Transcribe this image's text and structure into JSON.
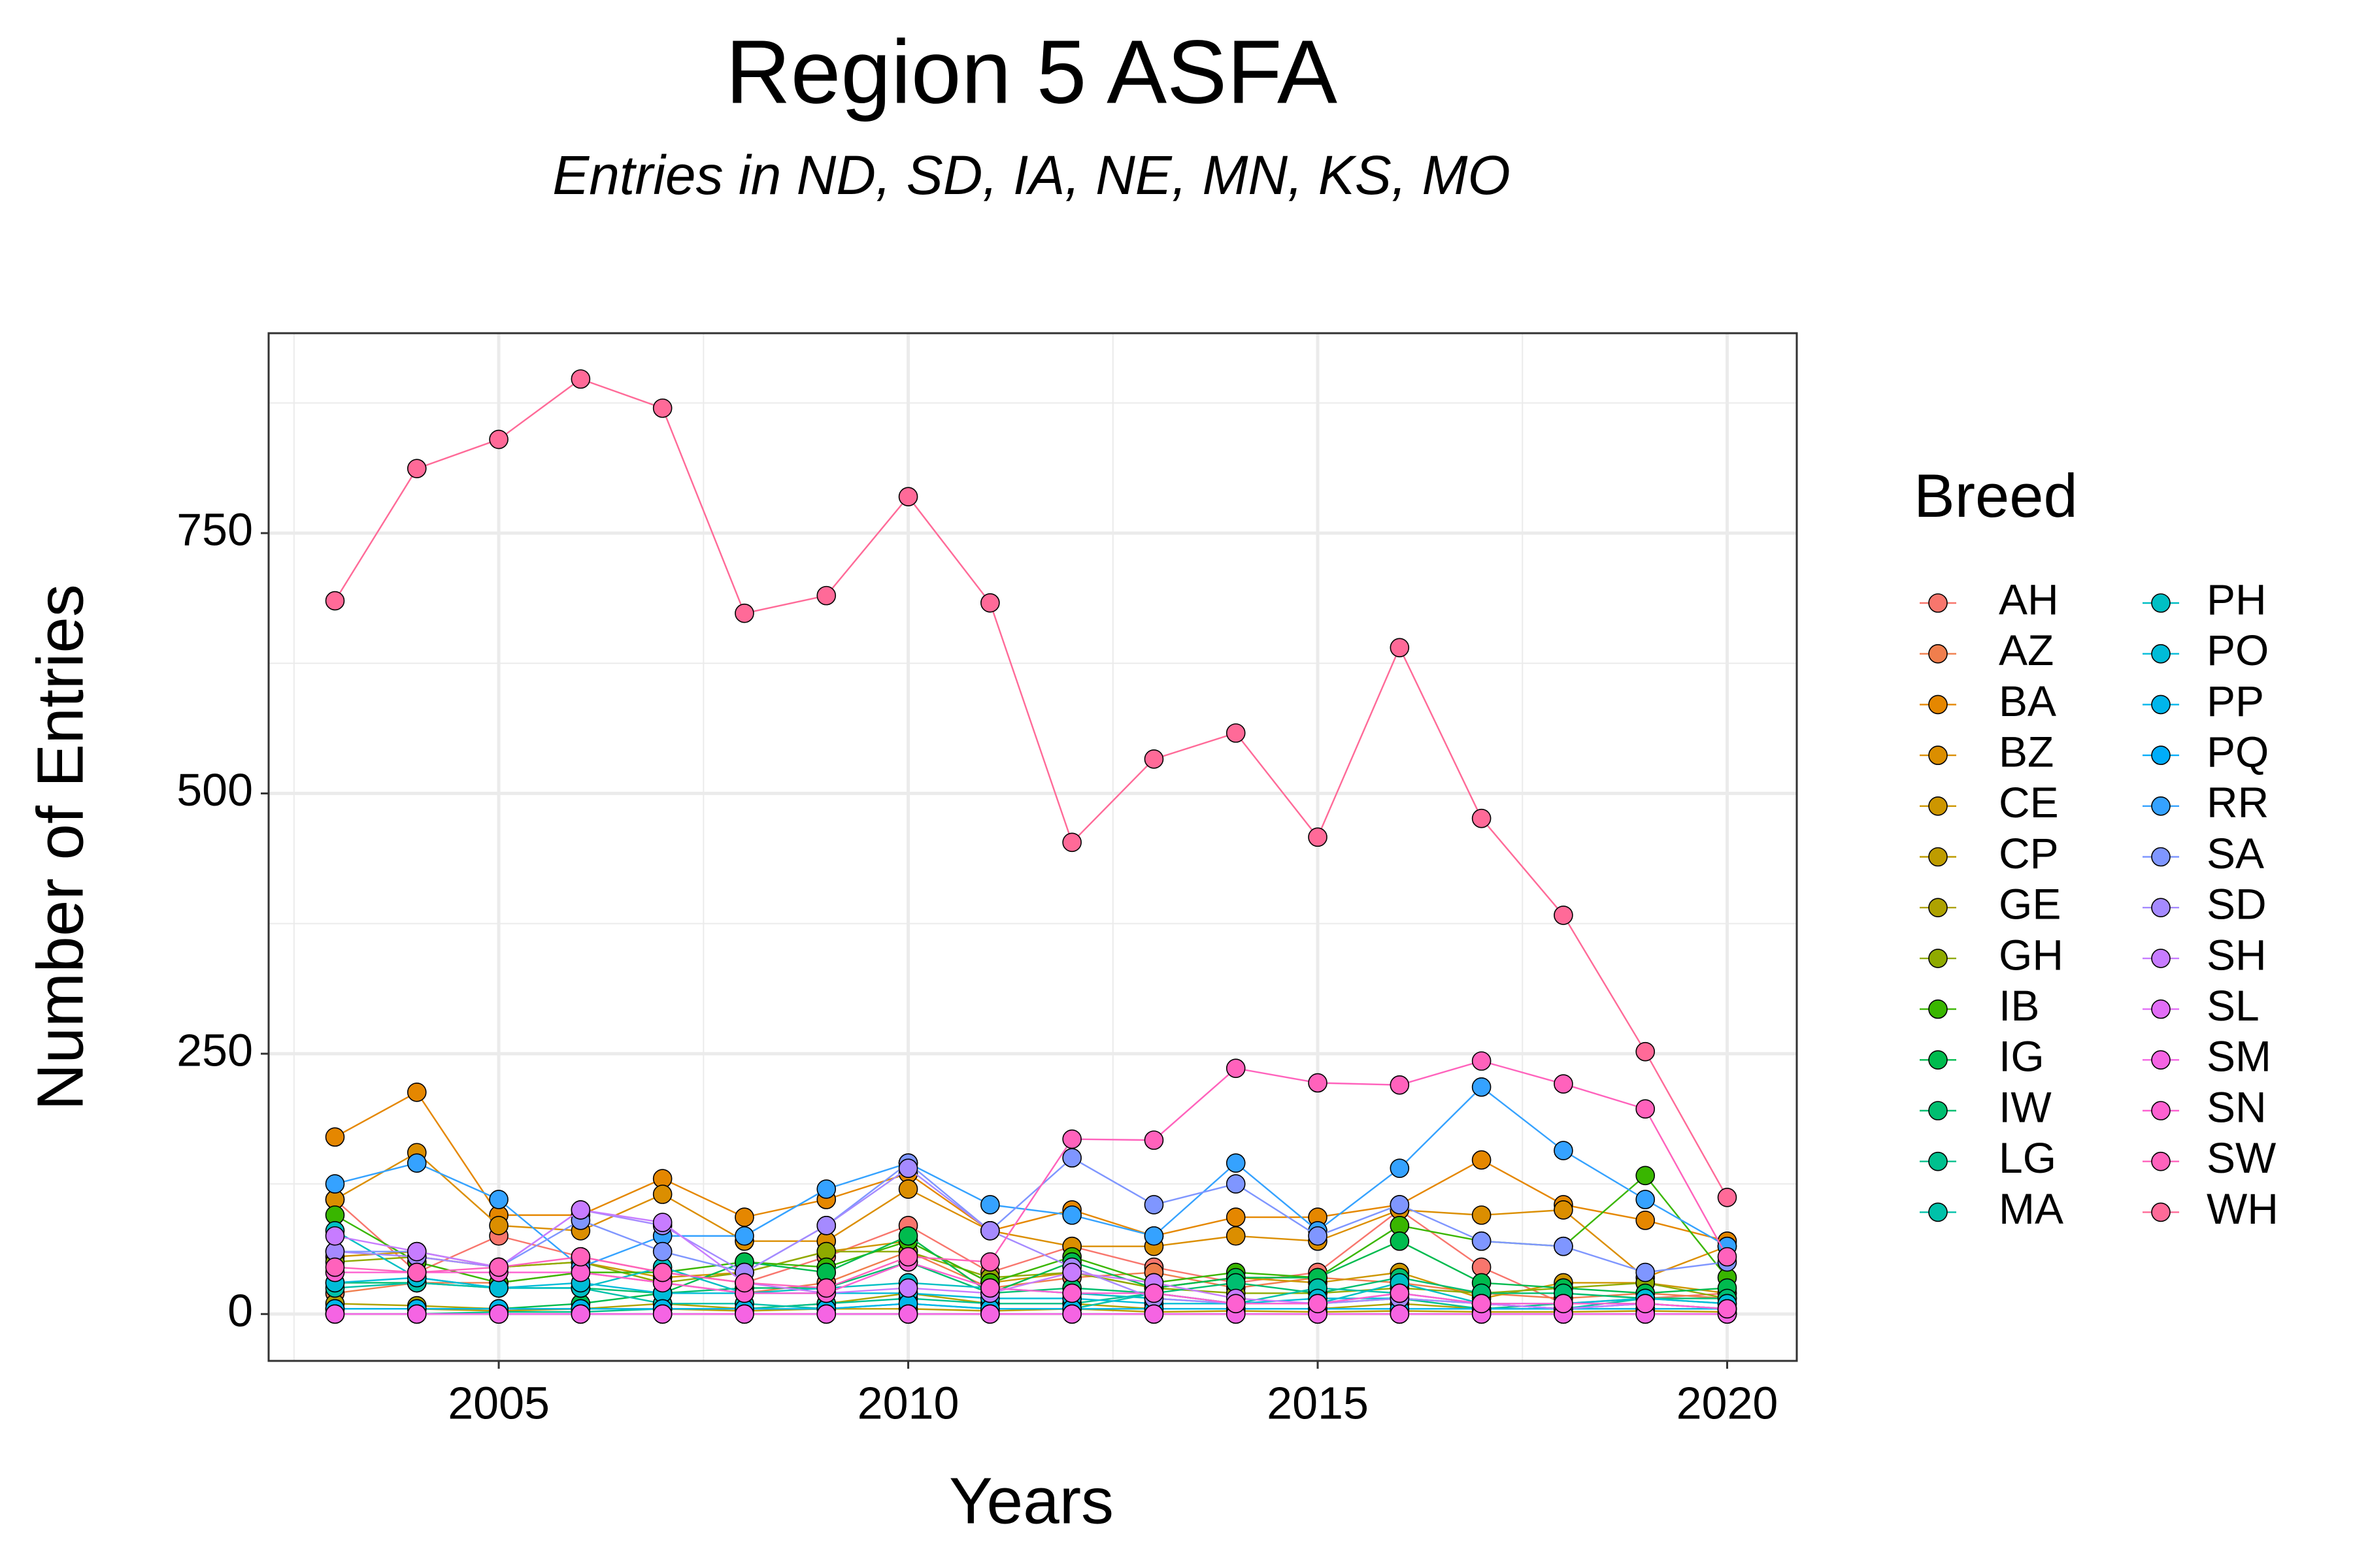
{
  "chart_data": {
    "type": "line",
    "title": "Region 5 ASFA",
    "subtitle": "Entries in ND, SD, IA, NE, MN, KS, MO",
    "x_label": "Years",
    "y_label": "Number of Entries",
    "legend_title": "Breed",
    "x": [
      2003,
      2004,
      2005,
      2006,
      2007,
      2008,
      2009,
      2010,
      2011,
      2012,
      2013,
      2014,
      2015,
      2016,
      2017,
      2018,
      2019,
      2020
    ],
    "xlim": [
      2002.19,
      2020.85
    ],
    "xticks": [
      2005,
      2010,
      2015,
      2020
    ],
    "ylim": [
      -45,
      942
    ],
    "yticks": [
      0,
      250,
      500,
      750
    ],
    "grid": true,
    "legend": "right",
    "series": [
      {
        "name": "AH",
        "color": "#F8766D",
        "values": [
          110,
          40,
          75,
          55,
          40,
          30,
          55,
          85,
          40,
          65,
          45,
          30,
          40,
          100,
          45,
          10,
          15,
          20
        ]
      },
      {
        "name": "AZ",
        "color": "#F07E4D",
        "values": [
          20,
          30,
          30,
          40,
          30,
          20,
          30,
          60,
          25,
          35,
          40,
          25,
          35,
          30,
          20,
          15,
          20,
          15
        ]
      },
      {
        "name": "BA",
        "color": "#E58700",
        "values": [
          170,
          213,
          95,
          95,
          130,
          93,
          110,
          135,
          80,
          100,
          75,
          93,
          93,
          105,
          148,
          105,
          90,
          70
        ]
      },
      {
        "name": "BZ",
        "color": "#DB8E00",
        "values": [
          110,
          155,
          85,
          80,
          115,
          70,
          70,
          120,
          80,
          65,
          65,
          75,
          70,
          100,
          95,
          100,
          35,
          65
        ]
      },
      {
        "name": "CE",
        "color": "#CD9600",
        "values": [
          55,
          60,
          45,
          50,
          35,
          40,
          60,
          70,
          30,
          40,
          25,
          35,
          30,
          40,
          15,
          30,
          30,
          20
        ]
      },
      {
        "name": "CP",
        "color": "#BE9C00",
        "values": [
          5,
          5,
          3,
          5,
          5,
          3,
          5,
          5,
          3,
          5,
          2,
          3,
          2,
          3,
          2,
          2,
          3,
          2
        ]
      },
      {
        "name": "GE",
        "color": "#AEA200",
        "values": [
          10,
          8,
          5,
          5,
          10,
          5,
          10,
          20,
          10,
          10,
          5,
          5,
          5,
          10,
          5,
          5,
          5,
          5
        ]
      },
      {
        "name": "GH",
        "color": "#8FAA00",
        "values": [
          50,
          55,
          45,
          50,
          30,
          40,
          60,
          60,
          35,
          40,
          25,
          20,
          20,
          25,
          20,
          25,
          30,
          15
        ]
      },
      {
        "name": "IB",
        "color": "#39B600",
        "values": [
          95,
          50,
          30,
          40,
          40,
          50,
          45,
          70,
          30,
          55,
          30,
          40,
          35,
          85,
          70,
          65,
          133,
          35
        ]
      },
      {
        "name": "IG",
        "color": "#00BB4E",
        "values": [
          5,
          5,
          5,
          10,
          20,
          50,
          40,
          75,
          20,
          50,
          25,
          35,
          35,
          70,
          30,
          25,
          20,
          25
        ]
      },
      {
        "name": "IW",
        "color": "#00BE70",
        "values": [
          30,
          30,
          25,
          25,
          20,
          25,
          25,
          50,
          20,
          25,
          20,
          30,
          20,
          35,
          20,
          20,
          15,
          15
        ]
      },
      {
        "name": "LG",
        "color": "#00C08E",
        "values": [
          0,
          0,
          2,
          2,
          5,
          5,
          10,
          15,
          10,
          10,
          20,
          10,
          10,
          15,
          5,
          10,
          10,
          5
        ]
      },
      {
        "name": "MA",
        "color": "#00C1A9",
        "values": [
          25,
          30,
          25,
          25,
          10,
          10,
          5,
          10,
          5,
          5,
          20,
          10,
          25,
          20,
          10,
          5,
          15,
          10
        ]
      },
      {
        "name": "PH",
        "color": "#00BFC4",
        "values": [
          80,
          35,
          25,
          25,
          45,
          20,
          25,
          30,
          25,
          20,
          15,
          10,
          10,
          30,
          10,
          5,
          10,
          5
        ]
      },
      {
        "name": "PO",
        "color": "#00BCD8",
        "values": [
          30,
          35,
          25,
          30,
          20,
          20,
          20,
          20,
          15,
          15,
          10,
          10,
          15,
          15,
          10,
          10,
          15,
          10
        ]
      },
      {
        "name": "PP",
        "color": "#00B6EB",
        "values": [
          5,
          5,
          5,
          5,
          5,
          5,
          5,
          10,
          5,
          5,
          5,
          5,
          5,
          5,
          5,
          5,
          5,
          5
        ]
      },
      {
        "name": "PQ",
        "color": "#00ADFA",
        "values": [
          0,
          0,
          0,
          0,
          0,
          0,
          0,
          0,
          0,
          0,
          0,
          0,
          0,
          0,
          0,
          0,
          0,
          0
        ]
      },
      {
        "name": "RR",
        "color": "#35A2FF",
        "values": [
          125,
          145,
          110,
          45,
          75,
          75,
          120,
          145,
          105,
          95,
          75,
          145,
          80,
          140,
          218,
          157,
          110,
          65
        ]
      },
      {
        "name": "SA",
        "color": "#7F96FF",
        "values": [
          60,
          60,
          45,
          90,
          60,
          40,
          85,
          145,
          80,
          150,
          105,
          125,
          75,
          105,
          70,
          65,
          40,
          50
        ]
      },
      {
        "name": "SD",
        "color": "#A58AFF",
        "values": [
          60,
          55,
          45,
          100,
          85,
          40,
          85,
          140,
          80,
          45,
          15,
          10,
          10,
          15,
          10,
          5,
          10,
          5
        ]
      },
      {
        "name": "SH",
        "color": "#C77CFF",
        "values": [
          75,
          60,
          45,
          100,
          88,
          30,
          20,
          25,
          20,
          40,
          30,
          15,
          10,
          20,
          10,
          5,
          10,
          5
        ]
      },
      {
        "name": "SL",
        "color": "#E26EF7",
        "values": [
          0,
          0,
          0,
          0,
          0,
          0,
          0,
          0,
          0,
          0,
          0,
          0,
          0,
          0,
          0,
          0,
          0,
          0
        ]
      },
      {
        "name": "SM",
        "color": "#F564E3",
        "values": [
          0,
          0,
          0,
          0,
          0,
          0,
          0,
          0,
          0,
          0,
          0,
          0,
          0,
          0,
          0,
          0,
          0,
          0
        ]
      },
      {
        "name": "SN",
        "color": "#FD61D1",
        "values": [
          40,
          40,
          40,
          40,
          30,
          20,
          20,
          50,
          25,
          20,
          20,
          10,
          10,
          20,
          10,
          10,
          10,
          5
        ]
      },
      {
        "name": "SW",
        "color": "#FF62BC",
        "values": [
          45,
          40,
          45,
          55,
          40,
          30,
          25,
          55,
          50,
          168,
          167,
          236,
          222,
          220,
          243,
          221,
          197,
          55
        ]
      },
      {
        "name": "WH",
        "color": "#FF6A98",
        "values": [
          685,
          812,
          840,
          898,
          870,
          673,
          690,
          785,
          683,
          453,
          533,
          558,
          458,
          640,
          476,
          383,
          252,
          112
        ]
      }
    ]
  }
}
